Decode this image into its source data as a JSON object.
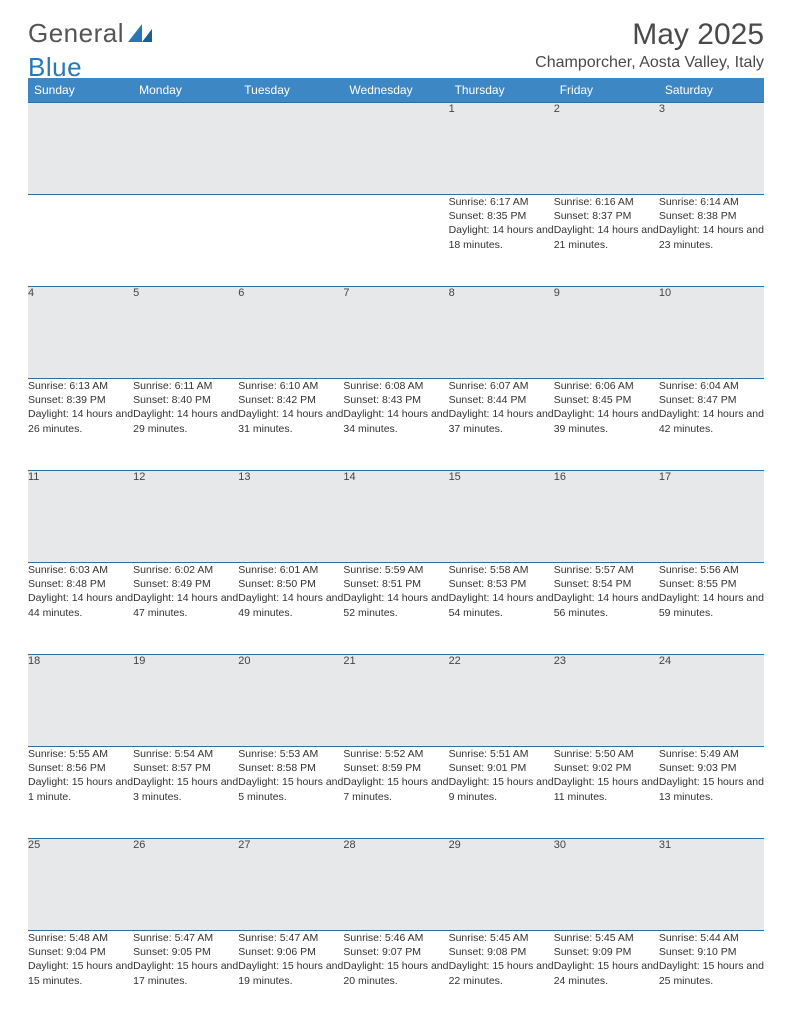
{
  "brand": {
    "part1": "General",
    "part2": "Blue"
  },
  "title": "May 2025",
  "location": "Champorcher, Aosta Valley, Italy",
  "colors": {
    "header_bg": "#3d87c4",
    "header_text": "#ffffff",
    "rule": "#2f6ea0",
    "daynum_bg": "#e7e8ea",
    "text": "#333333",
    "brand_blue": "#2878b9"
  },
  "weekdays": [
    "Sunday",
    "Monday",
    "Tuesday",
    "Wednesday",
    "Thursday",
    "Friday",
    "Saturday"
  ],
  "weeks": [
    [
      null,
      null,
      null,
      null,
      {
        "n": "1",
        "sr": "6:17 AM",
        "ss": "8:35 PM",
        "dl": "14 hours and 18 minutes."
      },
      {
        "n": "2",
        "sr": "6:16 AM",
        "ss": "8:37 PM",
        "dl": "14 hours and 21 minutes."
      },
      {
        "n": "3",
        "sr": "6:14 AM",
        "ss": "8:38 PM",
        "dl": "14 hours and 23 minutes."
      }
    ],
    [
      {
        "n": "4",
        "sr": "6:13 AM",
        "ss": "8:39 PM",
        "dl": "14 hours and 26 minutes."
      },
      {
        "n": "5",
        "sr": "6:11 AM",
        "ss": "8:40 PM",
        "dl": "14 hours and 29 minutes."
      },
      {
        "n": "6",
        "sr": "6:10 AM",
        "ss": "8:42 PM",
        "dl": "14 hours and 31 minutes."
      },
      {
        "n": "7",
        "sr": "6:08 AM",
        "ss": "8:43 PM",
        "dl": "14 hours and 34 minutes."
      },
      {
        "n": "8",
        "sr": "6:07 AM",
        "ss": "8:44 PM",
        "dl": "14 hours and 37 minutes."
      },
      {
        "n": "9",
        "sr": "6:06 AM",
        "ss": "8:45 PM",
        "dl": "14 hours and 39 minutes."
      },
      {
        "n": "10",
        "sr": "6:04 AM",
        "ss": "8:47 PM",
        "dl": "14 hours and 42 minutes."
      }
    ],
    [
      {
        "n": "11",
        "sr": "6:03 AM",
        "ss": "8:48 PM",
        "dl": "14 hours and 44 minutes."
      },
      {
        "n": "12",
        "sr": "6:02 AM",
        "ss": "8:49 PM",
        "dl": "14 hours and 47 minutes."
      },
      {
        "n": "13",
        "sr": "6:01 AM",
        "ss": "8:50 PM",
        "dl": "14 hours and 49 minutes."
      },
      {
        "n": "14",
        "sr": "5:59 AM",
        "ss": "8:51 PM",
        "dl": "14 hours and 52 minutes."
      },
      {
        "n": "15",
        "sr": "5:58 AM",
        "ss": "8:53 PM",
        "dl": "14 hours and 54 minutes."
      },
      {
        "n": "16",
        "sr": "5:57 AM",
        "ss": "8:54 PM",
        "dl": "14 hours and 56 minutes."
      },
      {
        "n": "17",
        "sr": "5:56 AM",
        "ss": "8:55 PM",
        "dl": "14 hours and 59 minutes."
      }
    ],
    [
      {
        "n": "18",
        "sr": "5:55 AM",
        "ss": "8:56 PM",
        "dl": "15 hours and 1 minute."
      },
      {
        "n": "19",
        "sr": "5:54 AM",
        "ss": "8:57 PM",
        "dl": "15 hours and 3 minutes."
      },
      {
        "n": "20",
        "sr": "5:53 AM",
        "ss": "8:58 PM",
        "dl": "15 hours and 5 minutes."
      },
      {
        "n": "21",
        "sr": "5:52 AM",
        "ss": "8:59 PM",
        "dl": "15 hours and 7 minutes."
      },
      {
        "n": "22",
        "sr": "5:51 AM",
        "ss": "9:01 PM",
        "dl": "15 hours and 9 minutes."
      },
      {
        "n": "23",
        "sr": "5:50 AM",
        "ss": "9:02 PM",
        "dl": "15 hours and 11 minutes."
      },
      {
        "n": "24",
        "sr": "5:49 AM",
        "ss": "9:03 PM",
        "dl": "15 hours and 13 minutes."
      }
    ],
    [
      {
        "n": "25",
        "sr": "5:48 AM",
        "ss": "9:04 PM",
        "dl": "15 hours and 15 minutes."
      },
      {
        "n": "26",
        "sr": "5:47 AM",
        "ss": "9:05 PM",
        "dl": "15 hours and 17 minutes."
      },
      {
        "n": "27",
        "sr": "5:47 AM",
        "ss": "9:06 PM",
        "dl": "15 hours and 19 minutes."
      },
      {
        "n": "28",
        "sr": "5:46 AM",
        "ss": "9:07 PM",
        "dl": "15 hours and 20 minutes."
      },
      {
        "n": "29",
        "sr": "5:45 AM",
        "ss": "9:08 PM",
        "dl": "15 hours and 22 minutes."
      },
      {
        "n": "30",
        "sr": "5:45 AM",
        "ss": "9:09 PM",
        "dl": "15 hours and 24 minutes."
      },
      {
        "n": "31",
        "sr": "5:44 AM",
        "ss": "9:10 PM",
        "dl": "15 hours and 25 minutes."
      }
    ]
  ],
  "labels": {
    "sunrise": "Sunrise: ",
    "sunset": "Sunset: ",
    "daylight": "Daylight: "
  }
}
